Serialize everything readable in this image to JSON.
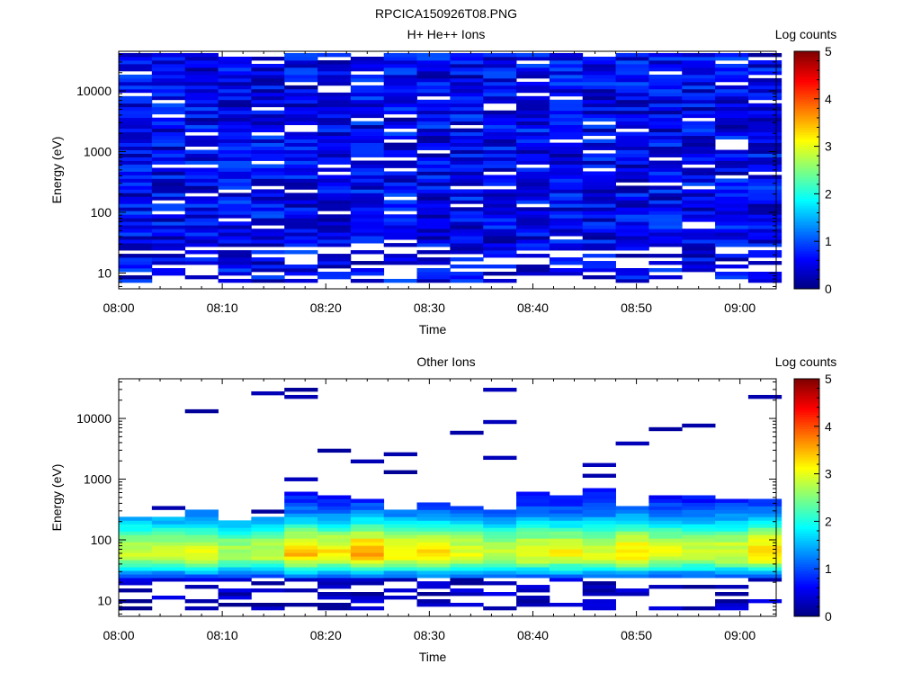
{
  "figure": {
    "title": "RPCICA150926T08.PNG"
  },
  "colorbar": {
    "label": "Log counts",
    "range": [
      0,
      5
    ],
    "ticks": [
      "0",
      "1",
      "2",
      "3",
      "4",
      "5"
    ]
  },
  "chart_data": [
    {
      "type": "heatmap",
      "title": "H+ He++ Ions",
      "xlabel": "Time",
      "ylabel": "Energy (eV)",
      "x_tick_labels": [
        "08:00",
        "08:10",
        "08:20",
        "08:30",
        "08:40",
        "08:50",
        "09:00"
      ],
      "x_range_minutes": [
        0,
        63.5
      ],
      "y_tick_labels": [
        "10",
        "100",
        "1000",
        "10000"
      ],
      "y_scale": "log",
      "y_range_eV": [
        5.5,
        45000
      ],
      "value_label": "Log counts",
      "value_range": [
        0,
        5
      ],
      "time_bins_minutes": [
        0,
        3.2,
        6.4,
        9.6,
        12.8,
        16,
        19.2,
        22.4,
        25.6,
        28.8,
        32,
        35.2,
        38.4,
        41.6,
        44.8,
        48,
        51.2,
        54.4,
        57.6,
        60.8
      ],
      "energy_bins": 64,
      "description": "Mostly low counts (log counts 0-1, dark to mid blue) across 10 eV - 40 keV for every time bin"
    },
    {
      "type": "heatmap",
      "title": "Other Ions",
      "xlabel": "Time",
      "ylabel": "Energy (eV)",
      "x_tick_labels": [
        "08:00",
        "08:10",
        "08:20",
        "08:30",
        "08:40",
        "08:50",
        "09:00"
      ],
      "x_range_minutes": [
        0,
        63.5
      ],
      "y_tick_labels": [
        "10",
        "100",
        "1000",
        "10000"
      ],
      "y_scale": "log",
      "y_range_eV": [
        5.5,
        45000
      ],
      "value_label": "Log counts",
      "value_range": [
        0,
        5
      ],
      "time_bins_minutes": [
        0,
        3.2,
        6.4,
        9.6,
        12.8,
        16,
        19.2,
        22.4,
        25.6,
        28.8,
        32,
        35.2,
        38.4,
        41.6,
        44.8,
        48,
        51.2,
        54.4,
        57.6,
        60.8
      ],
      "band_upper_eV": [
        210,
        210,
        290,
        200,
        220,
        620,
        480,
        420,
        310,
        400,
        360,
        280,
        580,
        500,
        680,
        320,
        520,
        480,
        460,
        420
      ],
      "band_peak_log_counts": [
        2.9,
        2.9,
        3.0,
        2.7,
        2.8,
        3.4,
        3.2,
        3.6,
        3.2,
        3.3,
        3.0,
        2.8,
        3.1,
        3.1,
        3.0,
        3.3,
        3.0,
        2.9,
        3.0,
        3.4
      ],
      "description": "Band of elevated counts (log counts ~2-3.6) between ~25 eV and ~200-700 eV, peak near 50-100 eV; sparse single counts at higher energies"
    }
  ]
}
